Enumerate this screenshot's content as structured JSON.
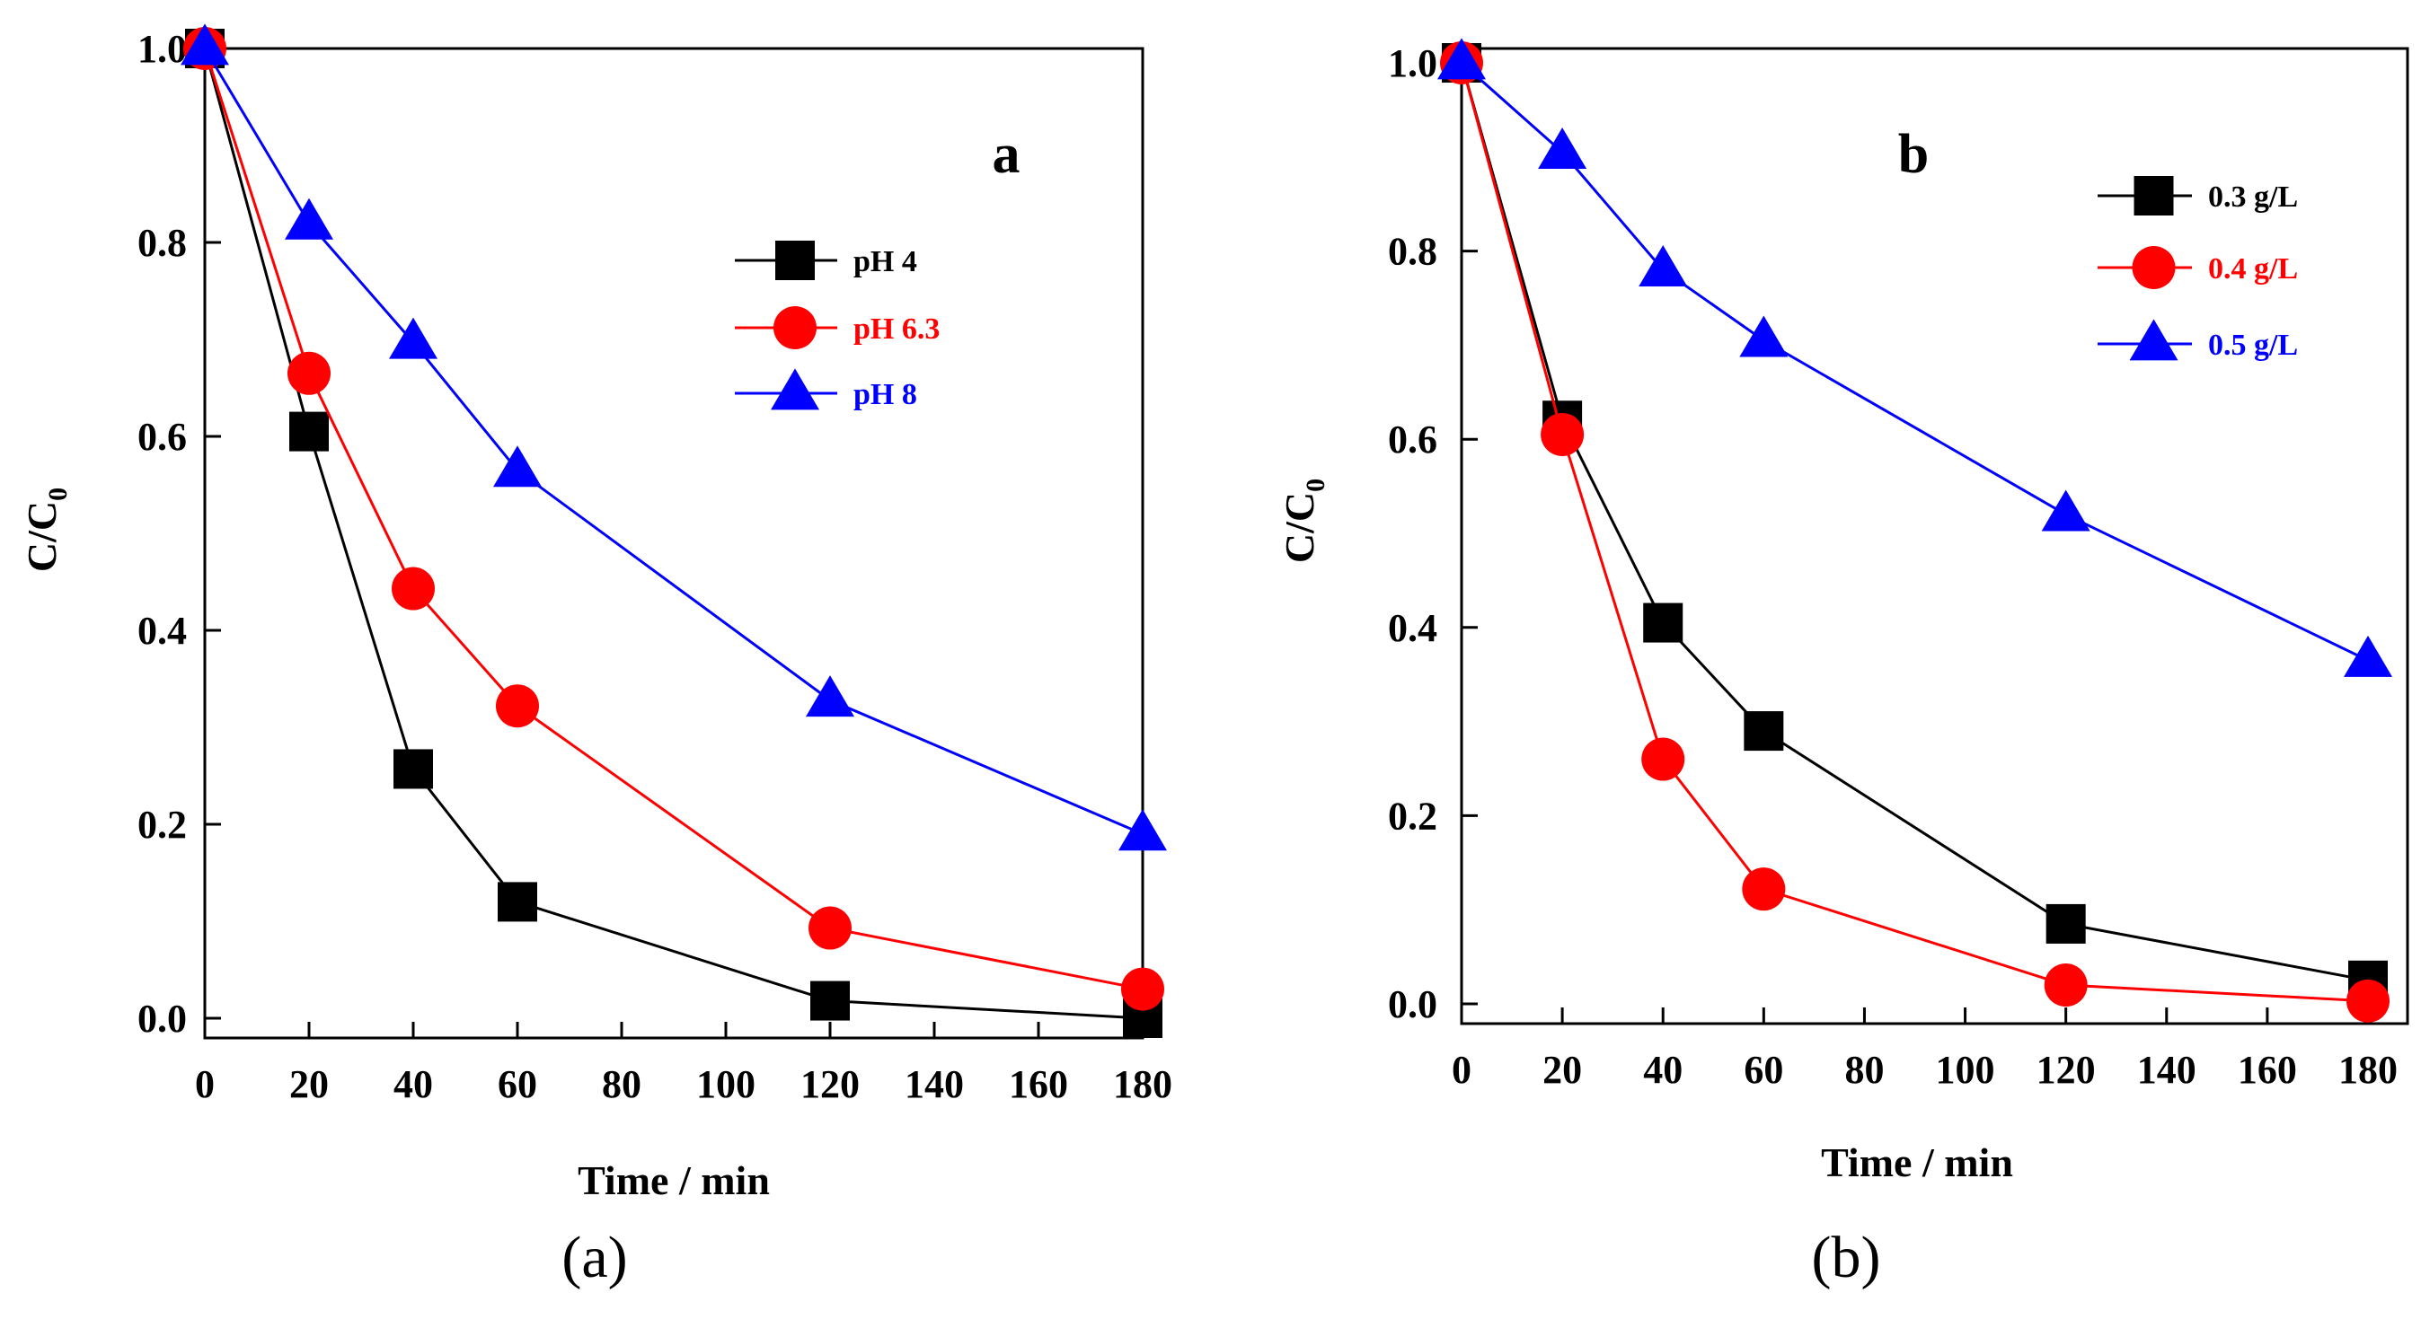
{
  "chart_data": [
    {
      "type": "line",
      "panel_letter": "a",
      "caption": "(a)",
      "xlabel": "Time / min",
      "ylabel": "C/C",
      "ylabel_sub": "0",
      "xlim": [
        0,
        180
      ],
      "ylim": [
        0.0,
        1.0
      ],
      "xticks": [
        0,
        20,
        40,
        60,
        80,
        100,
        120,
        140,
        160,
        180
      ],
      "yticks": [
        "0.0",
        "0.2",
        "0.4",
        "0.6",
        "0.8",
        "1.0"
      ],
      "x": [
        0,
        20,
        40,
        60,
        120,
        180
      ],
      "series": [
        {
          "name": "pH 4",
          "color": "#000000",
          "marker": "square",
          "values": [
            1.0,
            0.605,
            0.257,
            0.12,
            0.018,
            0.0
          ]
        },
        {
          "name": "pH 6.3",
          "color": "#ff0000",
          "marker": "circle",
          "values": [
            1.0,
            0.665,
            0.443,
            0.322,
            0.093,
            0.03
          ]
        },
        {
          "name": "pH 8",
          "color": "#0000ff",
          "marker": "triangle",
          "values": [
            1.0,
            0.82,
            0.697,
            0.565,
            0.328,
            0.19
          ]
        }
      ]
    },
    {
      "type": "line",
      "panel_letter": "b",
      "caption": "(b)",
      "xlabel": "Time / min",
      "ylabel": "C/C",
      "ylabel_sub": "0",
      "xlim": [
        0,
        180
      ],
      "ylim": [
        0.0,
        1.0
      ],
      "xticks": [
        0,
        20,
        40,
        60,
        80,
        100,
        120,
        140,
        160,
        180
      ],
      "yticks": [
        "0.0",
        "0.2",
        "0.4",
        "0.6",
        "0.8",
        "1.0"
      ],
      "x": [
        0,
        20,
        40,
        60,
        120,
        180
      ],
      "series": [
        {
          "name": "0.3 g/L",
          "color": "#000000",
          "marker": "square",
          "values": [
            1.0,
            0.62,
            0.405,
            0.29,
            0.085,
            0.025
          ]
        },
        {
          "name": "0.4 g/L",
          "color": "#ff0000",
          "marker": "circle",
          "values": [
            1.0,
            0.605,
            0.26,
            0.122,
            0.02,
            0.003
          ]
        },
        {
          "name": "0.5 g/L",
          "color": "#0000ff",
          "marker": "triangle",
          "values": [
            1.0,
            0.905,
            0.78,
            0.705,
            0.52,
            0.365
          ]
        }
      ]
    }
  ]
}
